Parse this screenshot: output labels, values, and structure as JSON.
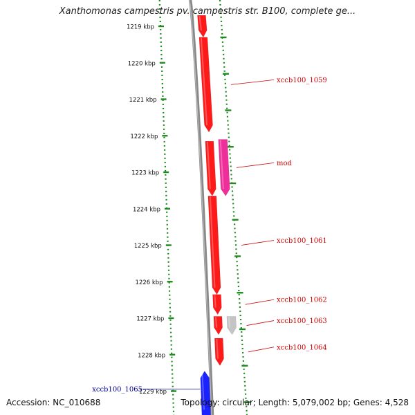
{
  "title": "Xanthomonas campestris pv. campestris str. B100, complete ge...",
  "footer": {
    "accession": "Accession: NC_010688",
    "summary": "Topology: circular; Length: 5,079,002 bp; Genes: 4,528"
  },
  "ticks": [
    "1219 kbp",
    "1220 kbp",
    "1221 kbp",
    "1222 kbp",
    "1223 kbp",
    "1224 kbp",
    "1225 kbp",
    "1226 kbp",
    "1227 kbp",
    "1228 kbp",
    "1229 kbp"
  ],
  "colors": {
    "forward_gene": "#ff1a1a",
    "mod_gene": "#ee2f9a",
    "grey_gene": "#c4c4c4",
    "reverse_gene": "#1a22ff",
    "label_forward": "#cc0000",
    "label_reverse": "#000099",
    "tick_green": "#1f8a1f",
    "backbone": "#888888"
  },
  "genes": [
    {
      "label": "",
      "start_kbp": 1218.7,
      "end_kbp": 1219.3,
      "track": 1,
      "strand": "+",
      "color": "#ff1a1a"
    },
    {
      "label": "xccb100_1059",
      "start_kbp": 1219.3,
      "end_kbp": 1221.9,
      "track": 1,
      "strand": "+",
      "color": "#ff1a1a"
    },
    {
      "label": "",
      "start_kbp": 1222.15,
      "end_kbp": 1223.65,
      "track": 1,
      "strand": "+",
      "color": "#ff1a1a"
    },
    {
      "label": "mod",
      "start_kbp": 1222.1,
      "end_kbp": 1223.65,
      "track": 2,
      "strand": "+",
      "color": "#ee2f9a"
    },
    {
      "label": "xccb100_1061",
      "start_kbp": 1223.65,
      "end_kbp": 1226.35,
      "track": 1,
      "strand": "+",
      "color": "#ff1a1a"
    },
    {
      "label": "xccb100_1062",
      "start_kbp": 1226.35,
      "end_kbp": 1226.9,
      "track": 1,
      "strand": "+",
      "color": "#ff1a1a"
    },
    {
      "label": "xccb100_1063",
      "start_kbp": 1226.95,
      "end_kbp": 1227.45,
      "track": 1,
      "strand": "+",
      "color": "#ff1a1a"
    },
    {
      "label": "",
      "start_kbp": 1226.95,
      "end_kbp": 1227.45,
      "track": 2,
      "strand": "+",
      "color": "#c4c4c4"
    },
    {
      "label": "xccb100_1064",
      "start_kbp": 1227.55,
      "end_kbp": 1228.3,
      "track": 1,
      "strand": "+",
      "color": "#ff1a1a"
    },
    {
      "label": "xccb100_1065",
      "start_kbp": 1228.45,
      "end_kbp": 1229.7,
      "track": -1,
      "strand": "-",
      "color": "#1a22ff"
    }
  ]
}
